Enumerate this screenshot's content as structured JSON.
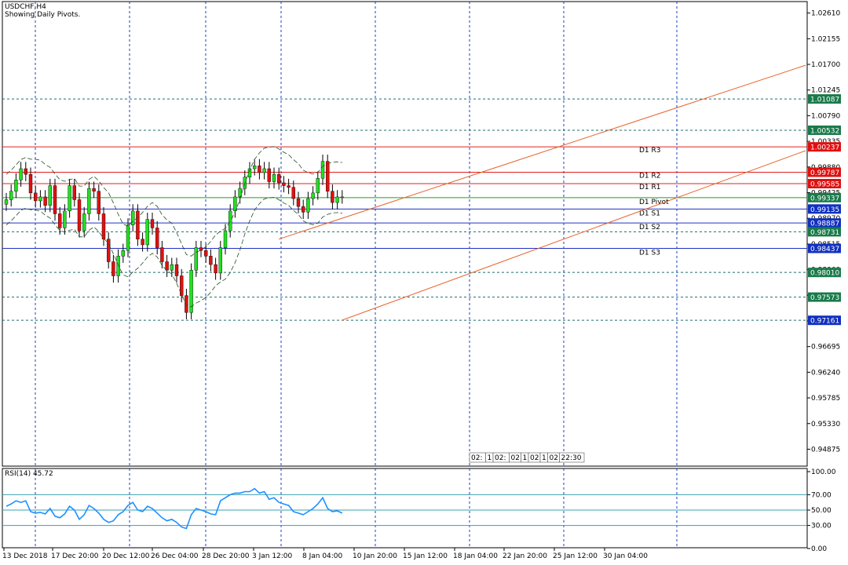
{
  "symbol": "USDCHF,H4",
  "subtitle": "Showing Daily Pivots.",
  "rsi_label": "RSI(14) 45.72",
  "price_axis_ticks": [
    "1.02610",
    "1.02155",
    "1.01700",
    "1.01245",
    "1.00790",
    "1.00335",
    "0.99880",
    "0.99425",
    "0.98970",
    "0.98515",
    "0.98060",
    "0.97605",
    "0.97150",
    "0.96695",
    "0.96240",
    "0.95785",
    "0.95330",
    "0.94875"
  ],
  "rsi_axis_ticks": [
    "100.00",
    "70.00",
    "50.00",
    "30.00",
    "0.00"
  ],
  "time_labels": [
    "13 Dec 2018",
    "17 Dec 20:00",
    "20 Dec 12:00",
    "26 Dec 04:00",
    "28 Dec 20:00",
    "3 Jan 12:00",
    "8 Jan 04:00",
    "10 Jan 20:00",
    "15 Jan 12:00",
    "18 Jan 04:00",
    "22 Jan 20:00",
    "25 Jan 12:00",
    "30 Jan 04:00"
  ],
  "period_separator_labels": [
    "02:",
    "1",
    "02:",
    "02",
    "1",
    "02",
    "1",
    "02",
    "22:30"
  ],
  "colors": {
    "resistance": "#e02020",
    "support": "#2030c0",
    "pivot": "#20a020",
    "channel": "#e8642a",
    "bull": "#20e020",
    "bear": "#e01010",
    "rsi": "#1e90ff",
    "grid": "#1e40c0",
    "price_box_green": "#1a7a4a",
    "price_box_red": "#e01010",
    "price_box_blue": "#1030c0"
  },
  "chart_data": {
    "type": "candlestick",
    "title": "USDCHF,H4",
    "subtitle": "Showing Daily Pivots.",
    "ylim": [
      0.94575,
      1.02814
    ],
    "x_labels": [
      "13 Dec 2018",
      "17 Dec 20:00",
      "20 Dec 12:00",
      "26 Dec 04:00",
      "28 Dec 20:00",
      "3 Jan 12:00",
      "8 Jan 04:00",
      "10 Jan 20:00",
      "15 Jan 12:00",
      "18 Jan 04:00",
      "22 Jan 20:00",
      "25 Jan 12:00",
      "30 Jan 04:00"
    ],
    "close_path": [
      0.993,
      0.9945,
      0.9965,
      0.9985,
      0.9975,
      0.9942,
      0.9928,
      0.9935,
      0.992,
      0.9955,
      0.9905,
      0.988,
      0.991,
      0.9955,
      0.993,
      0.9875,
      0.9905,
      0.995,
      0.9945,
      0.9905,
      0.986,
      0.982,
      0.9795,
      0.983,
      0.984,
      0.9885,
      0.991,
      0.986,
      0.985,
      0.9895,
      0.988,
      0.9845,
      0.982,
      0.9805,
      0.9815,
      0.9795,
      0.976,
      0.973,
      0.9805,
      0.9845,
      0.984,
      0.983,
      0.9815,
      0.98,
      0.9845,
      0.9875,
      0.991,
      0.9935,
      0.995,
      0.997,
      0.9985,
      0.999,
      0.9978,
      0.9985,
      0.9962,
      0.9975,
      0.996,
      0.9955,
      0.9952,
      0.9932,
      0.9918,
      0.9908,
      0.9932,
      0.9942,
      0.9968,
      0.9998,
      0.9945,
      0.9925,
      0.9935,
      0.9935
    ],
    "pivots": [
      {
        "name": "D1 R3",
        "value": 1.00237,
        "kind": "resistance"
      },
      {
        "name": "D1 R2",
        "value": 0.99787,
        "kind": "resistance"
      },
      {
        "name": "D1 R1",
        "value": 0.99585,
        "kind": "resistance"
      },
      {
        "name": "D1 Pivot",
        "value": 0.99337,
        "kind": "pivot"
      },
      {
        "name": "D1 S1",
        "value": 0.99135,
        "kind": "support"
      },
      {
        "name": "D1 S2",
        "value": 0.98887,
        "kind": "support"
      },
      {
        "name": "D1 S3",
        "value": 0.98437,
        "kind": "support"
      }
    ],
    "extra_levels": [
      1.01087,
      1.00532,
      0.98731,
      0.9801,
      0.97573,
      0.97161
    ],
    "price_boxes": [
      {
        "value": "1.01087",
        "style": "green"
      },
      {
        "value": "1.00532",
        "style": "green"
      },
      {
        "value": "1.00237",
        "style": "red"
      },
      {
        "value": "0.99787",
        "style": "red"
      },
      {
        "value": "0.99585",
        "style": "red"
      },
      {
        "value": "0.99337",
        "style": "green"
      },
      {
        "value": "0.99135",
        "style": "blue"
      },
      {
        "value": "0.98887",
        "style": "blue"
      },
      {
        "value": "0.98731",
        "style": "green"
      },
      {
        "value": "0.98437",
        "style": "blue"
      },
      {
        "value": "0.98010",
        "style": "green"
      },
      {
        "value": "0.97573",
        "style": "green"
      },
      {
        "value": "0.97161",
        "style": "blue"
      }
    ],
    "rsi": {
      "name": "RSI(14)",
      "last": 45.72,
      "levels": [
        70,
        50,
        30
      ],
      "ylim": [
        0,
        100
      ],
      "values": [
        55,
        58,
        62,
        60,
        62,
        48,
        46,
        47,
        45,
        52,
        42,
        40,
        45,
        55,
        50,
        38,
        44,
        56,
        52,
        46,
        38,
        34,
        36,
        44,
        48,
        56,
        60,
        50,
        48,
        55,
        52,
        46,
        40,
        36,
        38,
        34,
        28,
        26,
        44,
        52,
        50,
        48,
        45,
        44,
        62,
        66,
        70,
        72,
        72,
        74,
        74,
        78,
        72,
        74,
        64,
        66,
        60,
        58,
        56,
        48,
        46,
        44,
        48,
        52,
        58,
        66,
        52,
        48,
        49,
        46
      ]
    }
  }
}
